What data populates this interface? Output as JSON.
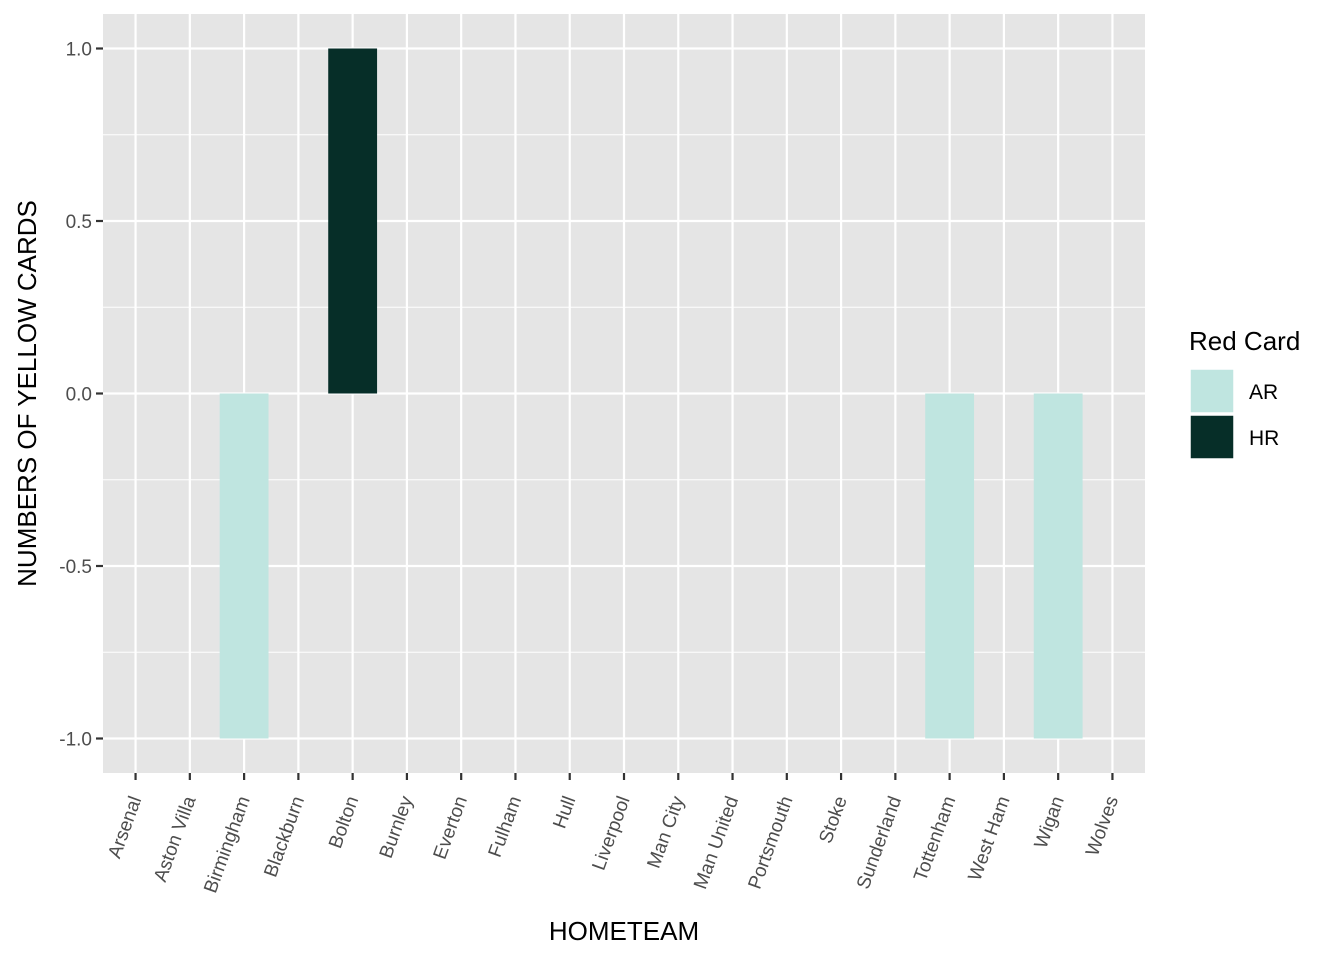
{
  "chart_data": {
    "type": "bar",
    "title": "",
    "xlabel": "HOMETEAM",
    "ylabel": "NUMBERS OF YELLOW CARDS",
    "ylim": [
      -1.1,
      1.1
    ],
    "y_ticks": [
      "-1.0",
      "-0.5",
      "0.0",
      "0.5",
      "1.0"
    ],
    "y_tick_values": [
      -1.0,
      -0.5,
      0.0,
      0.5,
      1.0
    ],
    "grid": true,
    "categories": [
      "Arsenal",
      "Aston Villa",
      "Birmingham",
      "Blackburn",
      "Bolton",
      "Burnley",
      "Everton",
      "Fulham",
      "Hull",
      "Liverpool",
      "Man City",
      "Man United",
      "Portsmouth",
      "Stoke",
      "Sunderland",
      "Tottenham",
      "West Ham",
      "Wigan",
      "Wolves"
    ],
    "bars": [
      {
        "category": "Birmingham",
        "series": "AR",
        "value": -1.0
      },
      {
        "category": "Bolton",
        "series": "HR",
        "value": 1.0
      },
      {
        "category": "Tottenham",
        "series": "AR",
        "value": -1.0
      },
      {
        "category": "Wigan",
        "series": "AR",
        "value": -1.0
      }
    ],
    "legend": {
      "title": "Red Card",
      "placement": "right",
      "entries": [
        {
          "name": "AR",
          "color": "#bfe5e0"
        },
        {
          "name": "HR",
          "color": "#062e28"
        }
      ]
    },
    "colors": {
      "panel_background": "#e5e5e5",
      "grid": "#ffffff"
    }
  }
}
